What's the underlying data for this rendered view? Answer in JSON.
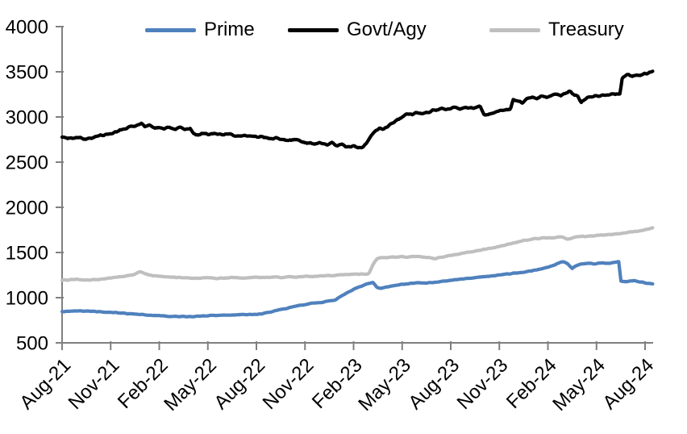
{
  "chart_data": {
    "type": "line",
    "title": "",
    "legend": {
      "position": "top-inside",
      "entries": [
        "Prime",
        "Govt/Agy",
        "Treasury"
      ]
    },
    "y_axis": {
      "min": 500,
      "max": 4000,
      "step": 500,
      "tick_values": [
        500,
        1000,
        1500,
        2000,
        2500,
        3000,
        3500,
        4000
      ],
      "tick_labels": [
        "500",
        "1000",
        "1500",
        "2000",
        "2500",
        "3000",
        "3500",
        "4000"
      ]
    },
    "x_axis": {
      "unit": "months-since-Aug-21",
      "tick_months": [
        0,
        3,
        6,
        9,
        12,
        15,
        18,
        21,
        24,
        27,
        30,
        33,
        36
      ],
      "tick_labels": [
        "Aug-21",
        "Nov-21",
        "Feb-22",
        "May-22",
        "Aug-22",
        "Nov-22",
        "Feb-23",
        "May-23",
        "Aug-23",
        "Nov-23",
        "Feb-24",
        "May-24",
        "Aug-24"
      ],
      "grid": false
    },
    "series": [
      {
        "name": "Prime",
        "color": "#4f81bd",
        "points": [
          [
            0,
            845
          ],
          [
            0.5,
            852
          ],
          [
            1,
            855
          ],
          [
            1.5,
            850
          ],
          [
            2,
            848
          ],
          [
            2.5,
            843
          ],
          [
            3,
            838
          ],
          [
            3.5,
            832
          ],
          [
            4,
            825
          ],
          [
            4.5,
            818
          ],
          [
            5,
            812
          ],
          [
            5.5,
            806
          ],
          [
            6,
            800
          ],
          [
            6.5,
            795
          ],
          [
            7,
            792
          ],
          [
            7.5,
            790
          ],
          [
            8,
            792
          ],
          [
            8.5,
            796
          ],
          [
            9,
            800
          ],
          [
            9.5,
            805
          ],
          [
            10,
            808
          ],
          [
            10.5,
            810
          ],
          [
            11,
            812
          ],
          [
            11.5,
            814
          ],
          [
            12,
            815
          ],
          [
            12.5,
            828
          ],
          [
            13,
            848
          ],
          [
            13.5,
            868
          ],
          [
            14,
            888
          ],
          [
            14.5,
            908
          ],
          [
            15,
            925
          ],
          [
            15.5,
            938
          ],
          [
            16,
            948
          ],
          [
            16.6,
            966
          ],
          [
            16.9,
            972
          ],
          [
            17.1,
            1002
          ],
          [
            17.5,
            1045
          ],
          [
            18,
            1092
          ],
          [
            18.4,
            1122
          ],
          [
            18.8,
            1150
          ],
          [
            19,
            1160
          ],
          [
            19.2,
            1165
          ],
          [
            19.45,
            1112
          ],
          [
            19.7,
            1102
          ],
          [
            20,
            1118
          ],
          [
            20.5,
            1132
          ],
          [
            21,
            1148
          ],
          [
            21.5,
            1157
          ],
          [
            22,
            1166
          ],
          [
            22.5,
            1160
          ],
          [
            23,
            1172
          ],
          [
            23.5,
            1180
          ],
          [
            24,
            1193
          ],
          [
            24.5,
            1203
          ],
          [
            25,
            1213
          ],
          [
            25.5,
            1222
          ],
          [
            26,
            1232
          ],
          [
            26.5,
            1242
          ],
          [
            27,
            1252
          ],
          [
            27.5,
            1262
          ],
          [
            28,
            1272
          ],
          [
            28.5,
            1283
          ],
          [
            29,
            1298
          ],
          [
            29.5,
            1315
          ],
          [
            30,
            1338
          ],
          [
            30.4,
            1362
          ],
          [
            30.8,
            1393
          ],
          [
            31,
            1393
          ],
          [
            31.2,
            1380
          ],
          [
            31.5,
            1325
          ],
          [
            31.8,
            1355
          ],
          [
            32,
            1370
          ],
          [
            32.5,
            1380
          ],
          [
            33,
            1375
          ],
          [
            33.4,
            1385
          ],
          [
            33.8,
            1380
          ],
          [
            34.1,
            1392
          ],
          [
            34.38,
            1398
          ],
          [
            34.5,
            1180
          ],
          [
            34.9,
            1180
          ],
          [
            35.3,
            1190
          ],
          [
            35.7,
            1175
          ],
          [
            36.1,
            1160
          ],
          [
            36.5,
            1155
          ]
        ]
      },
      {
        "name": "Govt/Agy",
        "color": "#000000",
        "points": [
          [
            0,
            2775
          ],
          [
            0.5,
            2765
          ],
          [
            1,
            2775
          ],
          [
            1.5,
            2758
          ],
          [
            2,
            2778
          ],
          [
            2.5,
            2795
          ],
          [
            3,
            2815
          ],
          [
            3.5,
            2845
          ],
          [
            4,
            2875
          ],
          [
            4.4,
            2900
          ],
          [
            4.9,
            2930
          ],
          [
            5.1,
            2895
          ],
          [
            5.4,
            2915
          ],
          [
            5.7,
            2875
          ],
          [
            6,
            2890
          ],
          [
            6.3,
            2870
          ],
          [
            6.6,
            2890
          ],
          [
            7,
            2865
          ],
          [
            7.3,
            2882
          ],
          [
            7.6,
            2858
          ],
          [
            7.9,
            2878
          ],
          [
            8.05,
            2835
          ],
          [
            8.3,
            2798
          ],
          [
            8.6,
            2815
          ],
          [
            9,
            2805
          ],
          [
            9.4,
            2820
          ],
          [
            9.8,
            2800
          ],
          [
            10.2,
            2812
          ],
          [
            10.6,
            2795
          ],
          [
            11,
            2788
          ],
          [
            11.5,
            2795
          ],
          [
            12,
            2775
          ],
          [
            12.4,
            2782
          ],
          [
            12.8,
            2762
          ],
          [
            13.2,
            2768
          ],
          [
            13.6,
            2752
          ],
          [
            14,
            2742
          ],
          [
            14.4,
            2748
          ],
          [
            14.8,
            2728
          ],
          [
            15.2,
            2712
          ],
          [
            15.6,
            2700
          ],
          [
            16,
            2712
          ],
          [
            16.4,
            2692
          ],
          [
            16.7,
            2712
          ],
          [
            17,
            2682
          ],
          [
            17.3,
            2700
          ],
          [
            17.6,
            2668
          ],
          [
            18,
            2678
          ],
          [
            18.3,
            2652
          ],
          [
            18.6,
            2668
          ],
          [
            18.85,
            2720
          ],
          [
            19.1,
            2790
          ],
          [
            19.35,
            2845
          ],
          [
            19.6,
            2875
          ],
          [
            19.85,
            2862
          ],
          [
            20.1,
            2900
          ],
          [
            20.4,
            2940
          ],
          [
            20.7,
            2968
          ],
          [
            21,
            3000
          ],
          [
            21.3,
            3040
          ],
          [
            21.6,
            3028
          ],
          [
            21.9,
            3048
          ],
          [
            22.2,
            3032
          ],
          [
            22.5,
            3052
          ],
          [
            22.8,
            3068
          ],
          [
            23.1,
            3080
          ],
          [
            23.4,
            3092
          ],
          [
            23.7,
            3078
          ],
          [
            24,
            3092
          ],
          [
            24.3,
            3106
          ],
          [
            24.6,
            3088
          ],
          [
            25,
            3106
          ],
          [
            25.4,
            3094
          ],
          [
            25.8,
            3128
          ],
          [
            26.05,
            3035
          ],
          [
            26.3,
            3018
          ],
          [
            26.6,
            3048
          ],
          [
            27,
            3062
          ],
          [
            27.4,
            3075
          ],
          [
            27.7,
            3085
          ],
          [
            27.85,
            3195
          ],
          [
            28.1,
            3180
          ],
          [
            28.4,
            3152
          ],
          [
            28.7,
            3205
          ],
          [
            29,
            3222
          ],
          [
            29.3,
            3200
          ],
          [
            29.6,
            3232
          ],
          [
            29.9,
            3218
          ],
          [
            30.2,
            3242
          ],
          [
            30.5,
            3252
          ],
          [
            30.8,
            3232
          ],
          [
            31.1,
            3255
          ],
          [
            31.35,
            3292
          ],
          [
            31.6,
            3242
          ],
          [
            31.85,
            3225
          ],
          [
            32.05,
            3158
          ],
          [
            32.3,
            3198
          ],
          [
            32.6,
            3222
          ],
          [
            33,
            3232
          ],
          [
            33.4,
            3242
          ],
          [
            33.8,
            3248
          ],
          [
            34.2,
            3252
          ],
          [
            34.45,
            3258
          ],
          [
            34.6,
            3445
          ],
          [
            34.9,
            3462
          ],
          [
            35.2,
            3448
          ],
          [
            35.5,
            3462
          ],
          [
            35.8,
            3468
          ],
          [
            36.1,
            3478
          ],
          [
            36.35,
            3498
          ],
          [
            36.5,
            3515
          ]
        ]
      },
      {
        "name": "Treasury",
        "color": "#bfbfbf",
        "points": [
          [
            0,
            1192
          ],
          [
            0.5,
            1198
          ],
          [
            1,
            1202
          ],
          [
            1.5,
            1196
          ],
          [
            2,
            1200
          ],
          [
            2.5,
            1208
          ],
          [
            3,
            1218
          ],
          [
            3.5,
            1230
          ],
          [
            4,
            1242
          ],
          [
            4.5,
            1258
          ],
          [
            4.8,
            1290
          ],
          [
            5.1,
            1268
          ],
          [
            5.4,
            1252
          ],
          [
            5.8,
            1242
          ],
          [
            6.2,
            1235
          ],
          [
            6.6,
            1228
          ],
          [
            7,
            1225
          ],
          [
            7.5,
            1222
          ],
          [
            8,
            1218
          ],
          [
            8.5,
            1215
          ],
          [
            9,
            1220
          ],
          [
            9.5,
            1212
          ],
          [
            10,
            1218
          ],
          [
            10.5,
            1222
          ],
          [
            11,
            1218
          ],
          [
            11.5,
            1222
          ],
          [
            12,
            1225
          ],
          [
            12.5,
            1222
          ],
          [
            13,
            1228
          ],
          [
            13.5,
            1225
          ],
          [
            14,
            1230
          ],
          [
            14.5,
            1228
          ],
          [
            15,
            1235
          ],
          [
            15.5,
            1232
          ],
          [
            16,
            1240
          ],
          [
            16.5,
            1245
          ],
          [
            17,
            1250
          ],
          [
            17.5,
            1255
          ],
          [
            18,
            1258
          ],
          [
            18.4,
            1262
          ],
          [
            18.8,
            1258
          ],
          [
            18.95,
            1272
          ],
          [
            19.2,
            1370
          ],
          [
            19.45,
            1432
          ],
          [
            19.7,
            1445
          ],
          [
            20,
            1438
          ],
          [
            20.3,
            1452
          ],
          [
            20.6,
            1445
          ],
          [
            21,
            1455
          ],
          [
            21.4,
            1448
          ],
          [
            21.8,
            1458
          ],
          [
            22.2,
            1452
          ],
          [
            22.6,
            1445
          ],
          [
            23,
            1432
          ],
          [
            23.4,
            1448
          ],
          [
            23.8,
            1462
          ],
          [
            24.2,
            1475
          ],
          [
            24.6,
            1488
          ],
          [
            25,
            1500
          ],
          [
            25.4,
            1512
          ],
          [
            25.8,
            1525
          ],
          [
            26.2,
            1538
          ],
          [
            26.6,
            1552
          ],
          [
            27,
            1565
          ],
          [
            27.4,
            1582
          ],
          [
            27.8,
            1600
          ],
          [
            28.2,
            1618
          ],
          [
            28.6,
            1635
          ],
          [
            29,
            1648
          ],
          [
            29.4,
            1656
          ],
          [
            29.8,
            1662
          ],
          [
            30.2,
            1660
          ],
          [
            30.6,
            1666
          ],
          [
            30.9,
            1672
          ],
          [
            31.2,
            1648
          ],
          [
            31.5,
            1660
          ],
          [
            31.8,
            1672
          ],
          [
            32.1,
            1678
          ],
          [
            32.5,
            1682
          ],
          [
            33,
            1688
          ],
          [
            33.5,
            1695
          ],
          [
            34,
            1702
          ],
          [
            34.5,
            1712
          ],
          [
            35,
            1722
          ],
          [
            35.5,
            1735
          ],
          [
            36,
            1752
          ],
          [
            36.5,
            1775
          ]
        ]
      }
    ],
    "colors": {
      "axis": "#808080",
      "text": "#000000",
      "background": "#ffffff"
    }
  }
}
